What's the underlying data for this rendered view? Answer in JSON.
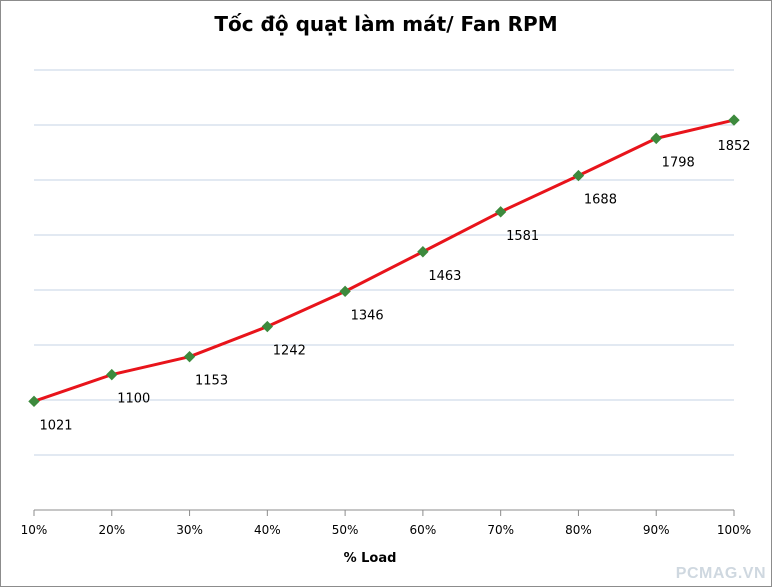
{
  "chart_data": {
    "type": "line",
    "title": "Tốc độ quạt làm mát/ Fan RPM",
    "xlabel": "% Load",
    "ylabel": "",
    "categories": [
      "10%",
      "20%",
      "30%",
      "40%",
      "50%",
      "60%",
      "70%",
      "80%",
      "90%",
      "100%"
    ],
    "series": [
      {
        "values": [
          1021,
          1100,
          1153,
          1242,
          1346,
          1463,
          1581,
          1688,
          1798,
          1852
        ]
      }
    ],
    "ylim": [
      700,
      2000
    ],
    "y_gridline_step": 162.5,
    "y_tick_labels_shown": false,
    "grid": true,
    "legend": "none",
    "data_labels": true,
    "colors": {
      "line": "#e8141b",
      "marker": "#3d8a3d",
      "grid": "#c5d3e5",
      "axis": "#8c8c8c"
    }
  },
  "watermark": {
    "text": "PCMAG.VN",
    "color": "#cfd8e0"
  }
}
